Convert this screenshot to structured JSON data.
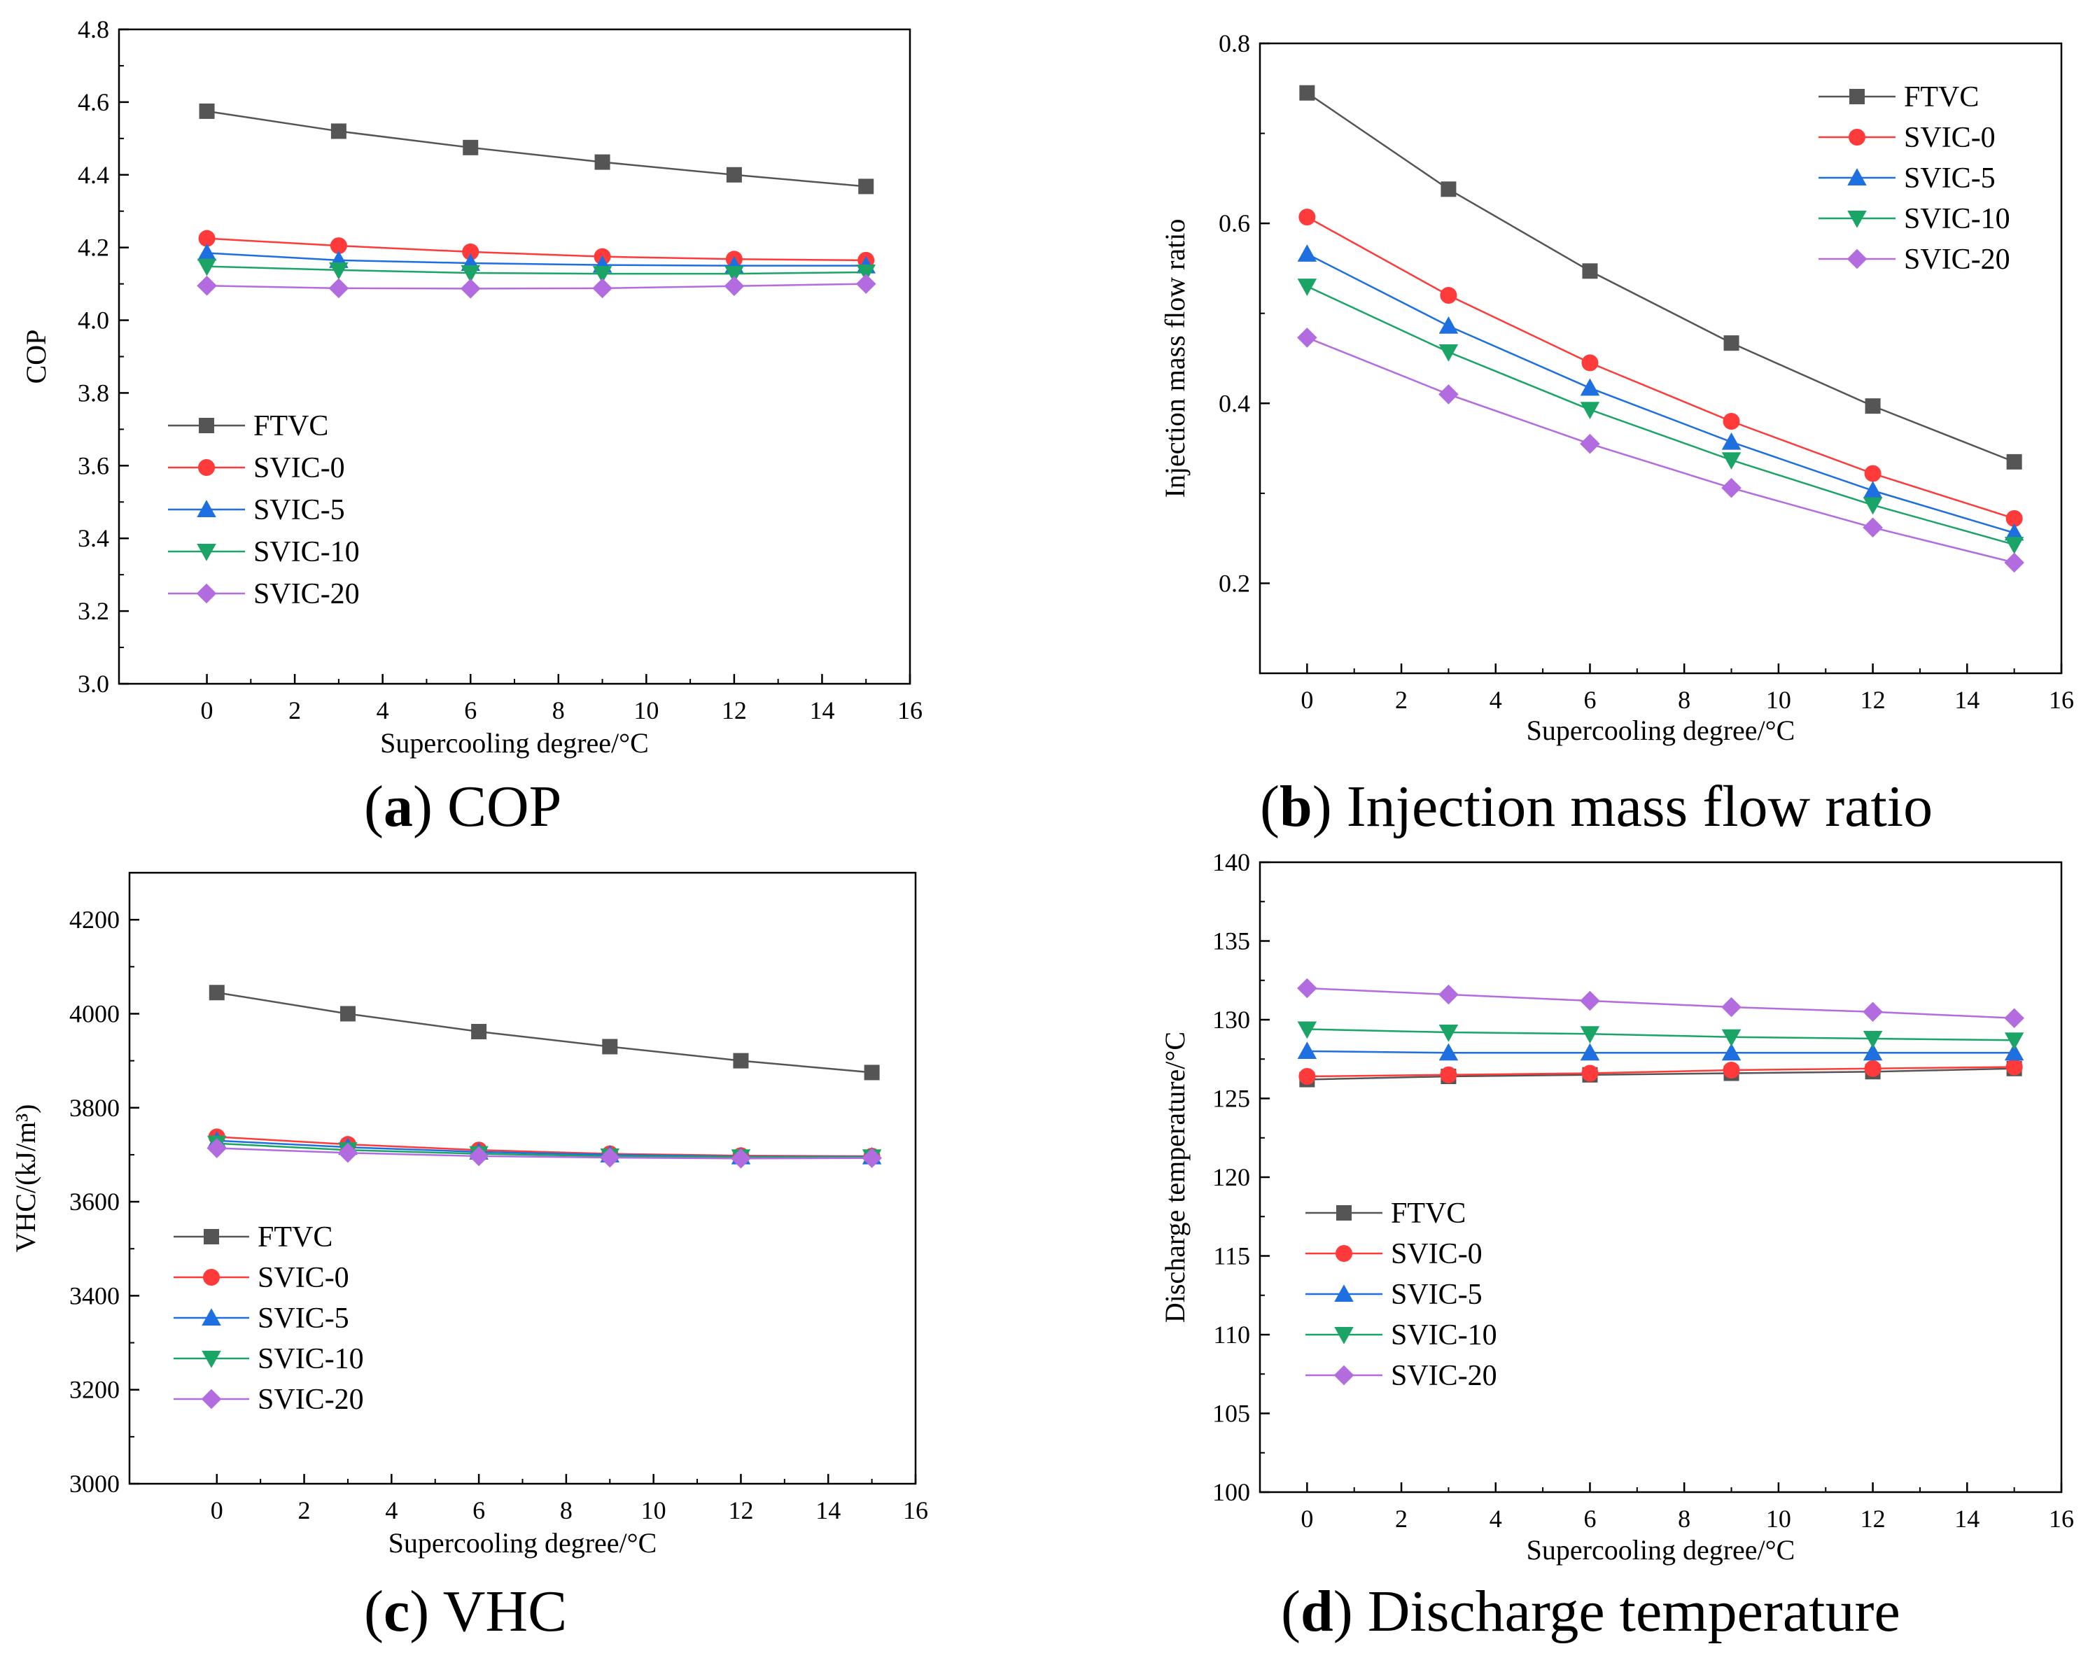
{
  "chart_data": [
    {
      "type": "line",
      "panel": "a",
      "caption_letter": "a",
      "caption_text": " COP",
      "title": "",
      "xlabel": "Supercooling degree/°C",
      "ylabel": "COP",
      "xlim": [
        -2,
        16
      ],
      "ylim": [
        3.0,
        4.8
      ],
      "xticks": [
        0,
        2,
        4,
        6,
        8,
        10,
        12,
        14,
        16
      ],
      "yticks": [
        3.0,
        3.2,
        3.4,
        3.6,
        3.8,
        4.0,
        4.2,
        4.4,
        4.6,
        4.8
      ],
      "ytick_labels": [
        "3.0",
        "3.2",
        "3.4",
        "3.6",
        "3.8",
        "4.0",
        "4.2",
        "4.4",
        "4.6",
        "4.8"
      ],
      "legend_position": "bottom-left",
      "x": [
        0,
        3,
        6,
        9,
        12,
        15
      ],
      "series": [
        {
          "name": "FTVC",
          "color": "#555555",
          "marker": "square",
          "values": [
            4.575,
            4.52,
            4.475,
            4.435,
            4.4,
            4.368
          ]
        },
        {
          "name": "SVIC-0",
          "color": "#ff3a3a",
          "marker": "circle",
          "values": [
            4.225,
            4.205,
            4.188,
            4.175,
            4.168,
            4.165
          ]
        },
        {
          "name": "SVIC-5",
          "color": "#1e6fe0",
          "marker": "triangle-up",
          "values": [
            4.185,
            4.165,
            4.157,
            4.152,
            4.15,
            4.15
          ]
        },
        {
          "name": "SVIC-10",
          "color": "#1aa566",
          "marker": "triangle-down",
          "values": [
            4.148,
            4.138,
            4.13,
            4.128,
            4.128,
            4.132
          ]
        },
        {
          "name": "SVIC-20",
          "color": "#b36be0",
          "marker": "diamond",
          "values": [
            4.095,
            4.088,
            4.087,
            4.088,
            4.094,
            4.1
          ]
        }
      ]
    },
    {
      "type": "line",
      "panel": "b",
      "caption_letter": "b",
      "caption_text": " Injection mass flow ratio",
      "title": "",
      "xlabel": "Supercooling degree/°C",
      "ylabel": "Injection mass flow ratio",
      "xlim": [
        -1,
        16
      ],
      "ylim": [
        0.1,
        0.8
      ],
      "xticks": [
        0,
        2,
        4,
        6,
        8,
        10,
        12,
        14,
        16
      ],
      "yticks": [
        0.2,
        0.4,
        0.6,
        0.8
      ],
      "ytick_labels": [
        "0.2",
        "0.4",
        "0.6",
        "0.8"
      ],
      "legend_position": "top-right",
      "x": [
        0,
        3,
        6,
        9,
        12,
        15
      ],
      "series": [
        {
          "name": "FTVC",
          "color": "#555555",
          "marker": "square",
          "values": [
            0.745,
            0.638,
            0.547,
            0.467,
            0.397,
            0.335
          ]
        },
        {
          "name": "SVIC-0",
          "color": "#ff3a3a",
          "marker": "circle",
          "values": [
            0.607,
            0.52,
            0.445,
            0.38,
            0.322,
            0.272
          ]
        },
        {
          "name": "SVIC-5",
          "color": "#1e6fe0",
          "marker": "triangle-up",
          "values": [
            0.566,
            0.486,
            0.417,
            0.357,
            0.303,
            0.256
          ]
        },
        {
          "name": "SVIC-10",
          "color": "#1aa566",
          "marker": "triangle-down",
          "values": [
            0.53,
            0.457,
            0.393,
            0.337,
            0.287,
            0.243
          ]
        },
        {
          "name": "SVIC-20",
          "color": "#b36be0",
          "marker": "diamond",
          "values": [
            0.473,
            0.41,
            0.355,
            0.306,
            0.262,
            0.223
          ]
        }
      ]
    },
    {
      "type": "line",
      "panel": "c",
      "caption_letter": "c",
      "caption_text": " VHC",
      "title": "",
      "xlabel": "Supercooling degree/°C",
      "ylabel": "VHC/(kJ/m³)",
      "xlim": [
        -2,
        16
      ],
      "ylim": [
        3000,
        4300
      ],
      "xticks": [
        0,
        2,
        4,
        6,
        8,
        10,
        12,
        14,
        16
      ],
      "yticks": [
        3000,
        3200,
        3400,
        3600,
        3800,
        4000,
        4200
      ],
      "ytick_labels": [
        "3000",
        "3200",
        "3400",
        "3600",
        "3800",
        "4000",
        "4200"
      ],
      "legend_position": "bottom-left",
      "x": [
        0,
        3,
        6,
        9,
        12,
        15
      ],
      "series": [
        {
          "name": "FTVC",
          "color": "#555555",
          "marker": "square",
          "values": [
            4045,
            4000,
            3962,
            3930,
            3900,
            3875
          ]
        },
        {
          "name": "SVIC-0",
          "color": "#ff3a3a",
          "marker": "circle",
          "values": [
            3738,
            3722,
            3710,
            3702,
            3698,
            3697
          ]
        },
        {
          "name": "SVIC-5",
          "color": "#1e6fe0",
          "marker": "triangle-up",
          "values": [
            3730,
            3716,
            3706,
            3700,
            3696,
            3696
          ]
        },
        {
          "name": "SVIC-10",
          "color": "#1aa566",
          "marker": "triangle-down",
          "values": [
            3724,
            3710,
            3702,
            3697,
            3695,
            3695
          ]
        },
        {
          "name": "SVIC-20",
          "color": "#b36be0",
          "marker": "diamond",
          "values": [
            3714,
            3704,
            3697,
            3694,
            3692,
            3693
          ]
        }
      ]
    },
    {
      "type": "line",
      "panel": "d",
      "caption_letter": "d",
      "caption_text": " Discharge temperature",
      "title": "",
      "xlabel": "Supercooling degree/°C",
      "ylabel": "Discharge temperature/°C",
      "xlim": [
        -1,
        16
      ],
      "ylim": [
        100,
        140
      ],
      "xticks": [
        0,
        2,
        4,
        6,
        8,
        10,
        12,
        14,
        16
      ],
      "yticks": [
        100,
        105,
        110,
        115,
        120,
        125,
        130,
        135,
        140
      ],
      "ytick_labels": [
        "100",
        "105",
        "110",
        "115",
        "120",
        "125",
        "130",
        "135",
        "140"
      ],
      "legend_position": "bottom-left",
      "x": [
        0,
        3,
        6,
        9,
        12,
        15
      ],
      "series": [
        {
          "name": "FTVC",
          "color": "#555555",
          "marker": "square",
          "values": [
            126.2,
            126.4,
            126.5,
            126.6,
            126.7,
            126.9
          ]
        },
        {
          "name": "SVIC-0",
          "color": "#ff3a3a",
          "marker": "circle",
          "values": [
            126.4,
            126.5,
            126.6,
            126.8,
            126.9,
            127.0
          ]
        },
        {
          "name": "SVIC-5",
          "color": "#1e6fe0",
          "marker": "triangle-up",
          "values": [
            128.0,
            127.9,
            127.9,
            127.9,
            127.9,
            127.9
          ]
        },
        {
          "name": "SVIC-10",
          "color": "#1aa566",
          "marker": "triangle-down",
          "values": [
            129.4,
            129.2,
            129.1,
            128.9,
            128.8,
            128.7
          ]
        },
        {
          "name": "SVIC-20",
          "color": "#b36be0",
          "marker": "diamond",
          "values": [
            132.0,
            131.6,
            131.2,
            130.8,
            130.5,
            130.1
          ]
        }
      ]
    }
  ]
}
